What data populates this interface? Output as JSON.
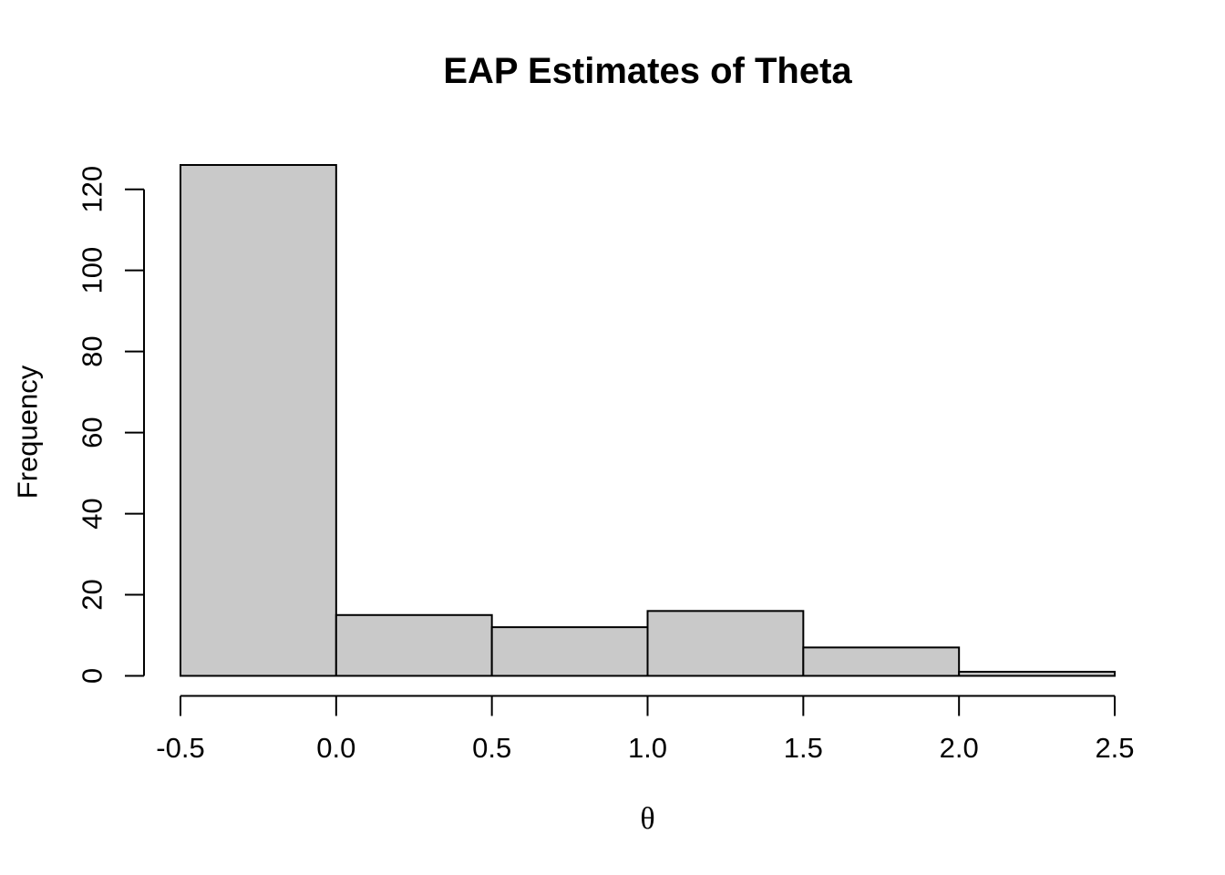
{
  "figure": {
    "background_color": "#ffffff"
  },
  "chart_data": {
    "type": "bar",
    "subtype": "histogram",
    "title": "EAP Estimates of Theta",
    "xlabel": "θ",
    "ylabel": "Frequency",
    "bin_edges": [
      -0.5,
      0.0,
      0.5,
      1.0,
      1.5,
      2.0,
      2.5
    ],
    "counts": [
      126,
      15,
      12,
      16,
      7,
      1
    ],
    "x_tick_values": [
      -0.5,
      0.0,
      0.5,
      1.0,
      1.5,
      2.0,
      2.5
    ],
    "x_tick_labels": [
      "-0.5",
      "0.0",
      "0.5",
      "1.0",
      "1.5",
      "2.0",
      "2.5"
    ],
    "y_tick_values": [
      0,
      20,
      40,
      60,
      80,
      100,
      120
    ],
    "y_tick_labels": [
      "0",
      "20",
      "40",
      "60",
      "80",
      "100",
      "120"
    ],
    "xlim": [
      -0.5,
      2.5
    ],
    "ylim": [
      0,
      120
    ],
    "grid": false,
    "legend": "none",
    "y_tick_label_rotation_deg": 90,
    "bar_fill_color": "#c9c9c9",
    "bar_stroke_color": "#000000",
    "axis_color": "#000000"
  }
}
